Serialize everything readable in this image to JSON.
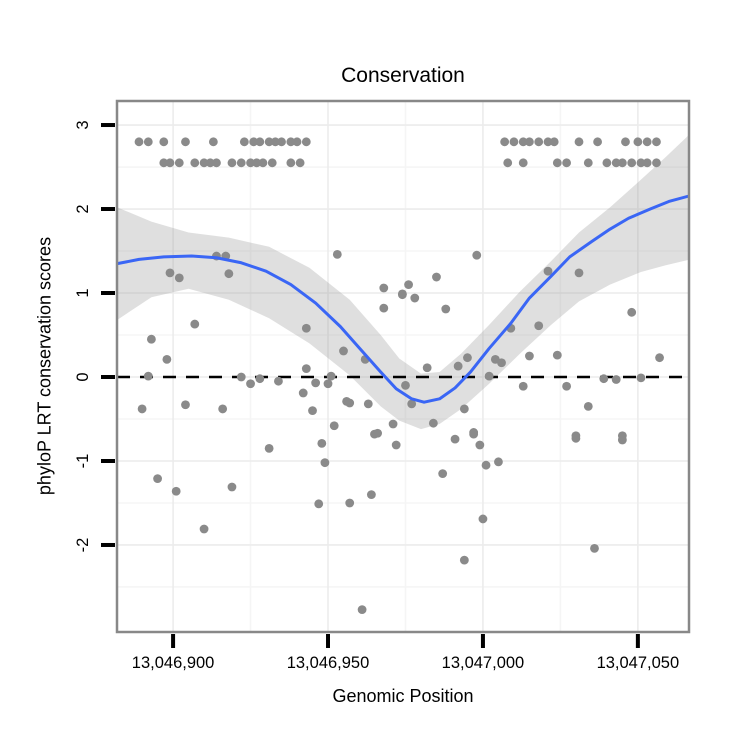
{
  "chart_data": {
    "type": "scatter",
    "title": "Conservation",
    "xlabel": "Genomic Position",
    "ylabel": "phyloP LRT conservation scores",
    "legend": "none",
    "grid": "major and minor, very light gray on white panel",
    "xlim": [
      13046881.9,
      13047066.5
    ],
    "ylim": [
      -3.036,
      3.286
    ],
    "x_ticks": [
      {
        "value": 13046900,
        "label": "13,046,900"
      },
      {
        "value": 13046950,
        "label": "13,046,950"
      },
      {
        "value": 13047000,
        "label": "13,047,000"
      },
      {
        "value": 13047050,
        "label": "13,047,050"
      }
    ],
    "y_ticks": [
      {
        "value": 3,
        "label": "3"
      },
      {
        "value": 2,
        "label": "2"
      },
      {
        "value": 1,
        "label": "1"
      },
      {
        "value": 0,
        "label": "0"
      },
      {
        "value": -1,
        "label": "-1"
      },
      {
        "value": -2,
        "label": "-2"
      }
    ],
    "x_minor": [
      13046925,
      13046975,
      13047025
    ],
    "y_minor": [
      2.5,
      1.5,
      0.5,
      -0.5,
      -1.5,
      -2.5
    ],
    "zero_line": {
      "y": 0,
      "style": "dashed",
      "color": "#000000",
      "dash": [
        13,
        10
      ],
      "width": 2.5
    },
    "colors": {
      "point": "#8a8a8a",
      "smooth_line": "#3a66f5",
      "ribbon": "rgba(150,150,150,0.30)",
      "panel_border": "#888888",
      "grid_major": "#ececec",
      "grid_minor": "#f5f5f5",
      "tick": "#000000",
      "panel_bg": "#ffffff"
    },
    "point_radius": 4.4,
    "points": [
      [
        13046889,
        2.8
      ],
      [
        13046892,
        2.8
      ],
      [
        13046897,
        2.8
      ],
      [
        13046904,
        2.8
      ],
      [
        13046913,
        2.8
      ],
      [
        13046923,
        2.8
      ],
      [
        13046926,
        2.8
      ],
      [
        13046928,
        2.8
      ],
      [
        13046931,
        2.8
      ],
      [
        13046933,
        2.8
      ],
      [
        13046935,
        2.8
      ],
      [
        13046938,
        2.8
      ],
      [
        13046940,
        2.8
      ],
      [
        13046943,
        2.8
      ],
      [
        13046897,
        2.55
      ],
      [
        13046899,
        2.55
      ],
      [
        13046902,
        2.55
      ],
      [
        13046907,
        2.55
      ],
      [
        13046910,
        2.55
      ],
      [
        13046912,
        2.55
      ],
      [
        13046914,
        2.55
      ],
      [
        13046919,
        2.55
      ],
      [
        13046922,
        2.55
      ],
      [
        13046925,
        2.55
      ],
      [
        13046927,
        2.55
      ],
      [
        13046929,
        2.55
      ],
      [
        13046932,
        2.55
      ],
      [
        13046938,
        2.55
      ],
      [
        13046941,
        2.55
      ],
      [
        13047007,
        2.8
      ],
      [
        13047010,
        2.8
      ],
      [
        13047013,
        2.8
      ],
      [
        13047015,
        2.8
      ],
      [
        13047018,
        2.8
      ],
      [
        13047021,
        2.8
      ],
      [
        13047023,
        2.8
      ],
      [
        13047031,
        2.8
      ],
      [
        13047037,
        2.8
      ],
      [
        13047046,
        2.8
      ],
      [
        13047050,
        2.8
      ],
      [
        13047053,
        2.8
      ],
      [
        13047056,
        2.8
      ],
      [
        13047008,
        2.55
      ],
      [
        13047013,
        2.55
      ],
      [
        13047024,
        2.55
      ],
      [
        13047027,
        2.55
      ],
      [
        13047034,
        2.55
      ],
      [
        13047040,
        2.55
      ],
      [
        13047043,
        2.55
      ],
      [
        13047045,
        2.55
      ],
      [
        13047048,
        2.55
      ],
      [
        13047051,
        2.55
      ],
      [
        13047053,
        2.55
      ],
      [
        13047056,
        2.55
      ],
      [
        13046899,
        1.24
      ],
      [
        13046902,
        1.18
      ],
      [
        13046914,
        1.44
      ],
      [
        13046917,
        1.44
      ],
      [
        13046918,
        1.23
      ],
      [
        13046907,
        0.63
      ],
      [
        13046893,
        0.45
      ],
      [
        13046898,
        0.21
      ],
      [
        13046892,
        0.01
      ],
      [
        13046890,
        -0.38
      ],
      [
        13046904,
        -0.33
      ],
      [
        13046916,
        -0.38
      ],
      [
        13046922,
        0.0
      ],
      [
        13046925,
        -0.08
      ],
      [
        13046928,
        -0.02
      ],
      [
        13046934,
        -0.05
      ],
      [
        13046953,
        1.46
      ],
      [
        13046943,
        0.58
      ],
      [
        13046943,
        0.1
      ],
      [
        13046942,
        -0.19
      ],
      [
        13046945,
        -0.4
      ],
      [
        13046946,
        -0.07
      ],
      [
        13046950,
        -0.08
      ],
      [
        13046951,
        0.01
      ],
      [
        13046955,
        0.31
      ],
      [
        13046956,
        -0.29
      ],
      [
        13046957,
        -0.31
      ],
      [
        13046962,
        0.21
      ],
      [
        13046963,
        -0.32
      ],
      [
        13046968,
        1.06
      ],
      [
        13046968,
        0.82
      ],
      [
        13046974,
        0.99
      ],
      [
        13046971,
        -0.56
      ],
      [
        13046952,
        -0.58
      ],
      [
        13046966,
        -0.67
      ],
      [
        13046895,
        -1.21
      ],
      [
        13046901,
        -1.36
      ],
      [
        13046919,
        -1.31
      ],
      [
        13046910,
        -1.81
      ],
      [
        13046931,
        -0.85
      ],
      [
        13046948,
        -0.79
      ],
      [
        13046949,
        -1.02
      ],
      [
        13046947,
        -1.51
      ],
      [
        13046957,
        -1.5
      ],
      [
        13046964,
        -1.4
      ],
      [
        13046965,
        -0.68
      ],
      [
        13046972,
        -0.81
      ],
      [
        13046961,
        -2.77
      ],
      [
        13046998,
        1.45
      ],
      [
        13046985,
        1.19
      ],
      [
        13046976,
        1.1
      ],
      [
        13046974,
        0.98
      ],
      [
        13046978,
        0.94
      ],
      [
        13046988,
        0.81
      ],
      [
        13047021,
        1.26
      ],
      [
        13047031,
        1.24
      ],
      [
        13047009,
        0.58
      ],
      [
        13047018,
        0.61
      ],
      [
        13047048,
        0.77
      ],
      [
        13047015,
        0.25
      ],
      [
        13047024,
        0.26
      ],
      [
        13047004,
        0.21
      ],
      [
        13047006,
        0.17
      ],
      [
        13046995,
        0.23
      ],
      [
        13046992,
        0.13
      ],
      [
        13046982,
        0.11
      ],
      [
        13047002,
        0.01
      ],
      [
        13047039,
        -0.02
      ],
      [
        13047043,
        -0.03
      ],
      [
        13047051,
        -0.01
      ],
      [
        13047057,
        0.23
      ],
      [
        13047013,
        -0.11
      ],
      [
        13047027,
        -0.11
      ],
      [
        13046975,
        -0.1
      ],
      [
        13046977,
        -0.32
      ],
      [
        13046984,
        -0.55
      ],
      [
        13046994,
        -0.38
      ],
      [
        13047034,
        -0.35
      ],
      [
        13046997,
        -0.66
      ],
      [
        13047030,
        -0.7
      ],
      [
        13047045,
        -0.7
      ],
      [
        13046991,
        -0.74
      ],
      [
        13046997,
        -0.68
      ],
      [
        13046999,
        -0.81
      ],
      [
        13047001,
        -1.05
      ],
      [
        13047005,
        -1.01
      ],
      [
        13046987,
        -1.15
      ],
      [
        13047030,
        -0.73
      ],
      [
        13047045,
        -0.75
      ],
      [
        13047000,
        -1.69
      ],
      [
        13046994,
        -2.18
      ],
      [
        13047036,
        -2.04
      ]
    ],
    "smooth": {
      "x": [
        13046882,
        13046889,
        13046897,
        13046906,
        13046914,
        13046922,
        13046930,
        13046938,
        13046946,
        13046954,
        13046960,
        13046967,
        13046972,
        13046977,
        13046981,
        13046986,
        13046991,
        13046996,
        13047002,
        13047009,
        13047015,
        13047022,
        13047028,
        13047035,
        13047041,
        13047047,
        13047054,
        13047060,
        13047067
      ],
      "y": [
        1.35,
        1.4,
        1.43,
        1.44,
        1.42,
        1.36,
        1.26,
        1.1,
        0.88,
        0.6,
        0.35,
        0.06,
        -0.14,
        -0.26,
        -0.3,
        -0.26,
        -0.13,
        0.06,
        0.34,
        0.64,
        0.94,
        1.2,
        1.43,
        1.61,
        1.76,
        1.89,
        2.0,
        2.09,
        2.16
      ]
    },
    "ribbon": {
      "x": [
        13046882,
        13046893,
        13046905,
        13046918,
        13046931,
        13046944,
        13046957,
        13046967,
        13046973,
        13046980,
        13046986,
        13046993,
        13047002,
        13047012,
        13047022,
        13047031,
        13047041,
        13047051,
        13047059,
        13047067
      ],
      "upper": [
        2.02,
        1.85,
        1.72,
        1.66,
        1.55,
        1.3,
        0.92,
        0.5,
        0.22,
        0.04,
        0.06,
        0.28,
        0.62,
        1.02,
        1.38,
        1.72,
        2.02,
        2.35,
        2.62,
        2.9
      ],
      "lower": [
        0.68,
        0.95,
        1.05,
        0.92,
        0.7,
        0.4,
        0.02,
        -0.35,
        -0.52,
        -0.62,
        -0.56,
        -0.38,
        -0.08,
        0.28,
        0.62,
        0.9,
        1.1,
        1.25,
        1.33,
        1.4
      ]
    }
  }
}
